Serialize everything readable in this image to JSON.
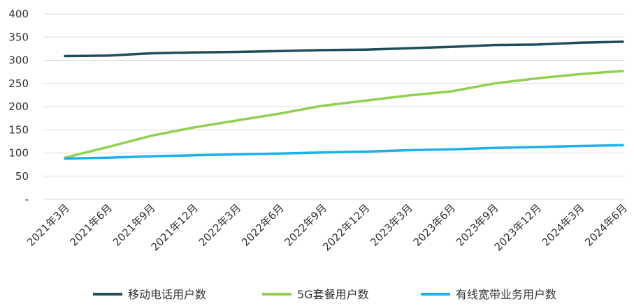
{
  "chart_data": {
    "type": "line",
    "title": "",
    "xlabel": "",
    "ylabel": "",
    "ylim": [
      0,
      400
    ],
    "yticks": [
      0,
      50,
      100,
      150,
      200,
      250,
      300,
      350,
      400
    ],
    "ytick_labels": [
      "-",
      "50",
      "100",
      "150",
      "200",
      "250",
      "300",
      "350",
      "400"
    ],
    "grid": "horizontal",
    "legend_position": "bottom",
    "categories": [
      "2021年3月",
      "2021年6月",
      "2021年9月",
      "2021年12月",
      "2022年3月",
      "2022年6月",
      "2022年9月",
      "2022年12月",
      "2023年3月",
      "2023年6月",
      "2023年9月",
      "2023年12月",
      "2024年3月",
      "2024年6月"
    ],
    "series": [
      {
        "name": "移动电话用户数",
        "color": "#1f4e5a",
        "values": [
          309,
          310,
          315,
          317,
          318,
          320,
          322,
          323,
          326,
          329,
          333,
          334,
          338,
          340
        ]
      },
      {
        "name": "5G套餐用户数",
        "color": "#92d050",
        "values": [
          90,
          113,
          137,
          155,
          170,
          185,
          202,
          213,
          224,
          233,
          250,
          261,
          270,
          277
        ]
      },
      {
        "name": "有线宽带业务用户数",
        "color": "#1ab1ec",
        "values": [
          88,
          90,
          93,
          95,
          97,
          99,
          101,
          103,
          106,
          108,
          111,
          113,
          115,
          117
        ]
      }
    ]
  }
}
